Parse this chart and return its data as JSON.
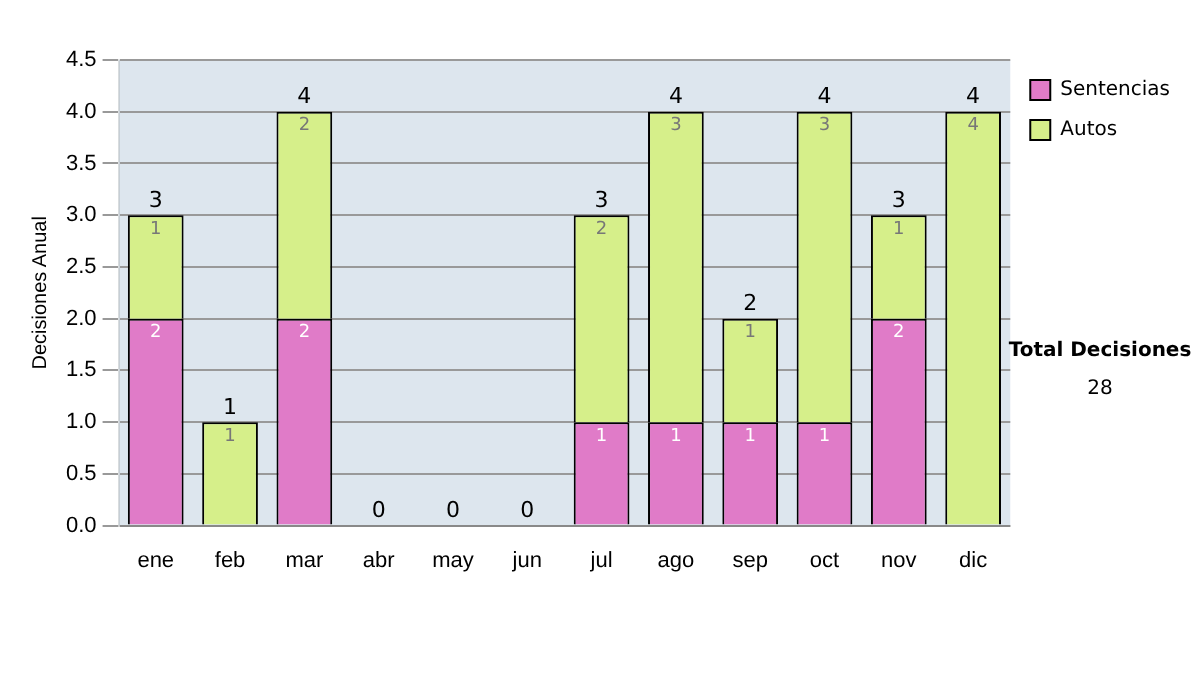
{
  "chart_data": {
    "type": "bar",
    "stacked": true,
    "ylabel": "Decisiones Anual",
    "categories": [
      "ene",
      "feb",
      "mar",
      "abr",
      "may",
      "jun",
      "jul",
      "ago",
      "sep",
      "oct",
      "nov",
      "dic"
    ],
    "series": [
      {
        "name": "Sentencias",
        "color": "#e07bc8",
        "values": [
          2,
          0,
          2,
          0,
          0,
          0,
          1,
          1,
          1,
          1,
          2,
          0
        ],
        "value_labels": [
          "2",
          null,
          "2",
          null,
          null,
          null,
          "1",
          "1",
          "1",
          "1",
          "2",
          null
        ]
      },
      {
        "name": "Autos",
        "color": "#d6ef8a",
        "values": [
          1,
          1,
          2,
          0,
          0,
          0,
          2,
          3,
          1,
          3,
          1,
          4
        ],
        "value_labels": [
          "1",
          "1",
          "2",
          null,
          null,
          null,
          "2",
          "3",
          "1",
          "3",
          "1",
          "4"
        ]
      }
    ],
    "totals": [
      "3",
      "1",
      "4",
      "0",
      "0",
      "0",
      "3",
      "4",
      "2",
      "4",
      "3",
      "4"
    ],
    "ylim": [
      0,
      4.5
    ],
    "yticks": [
      {
        "value": 0,
        "label": "0.0"
      },
      {
        "value": 0.5,
        "label": "0.5"
      },
      {
        "value": 1,
        "label": "1.0"
      },
      {
        "value": 1.5,
        "label": "1.5"
      },
      {
        "value": 2,
        "label": "2.0"
      },
      {
        "value": 2.5,
        "label": "2.5"
      },
      {
        "value": 3,
        "label": "3.0"
      },
      {
        "value": 3.5,
        "label": "3.5"
      },
      {
        "value": 4,
        "label": "4.0"
      },
      {
        "value": 4.5,
        "label": "4.5"
      }
    ],
    "grid": "y",
    "legend": "top right",
    "annotations": [
      "Total Decisiones",
      "28"
    ]
  }
}
